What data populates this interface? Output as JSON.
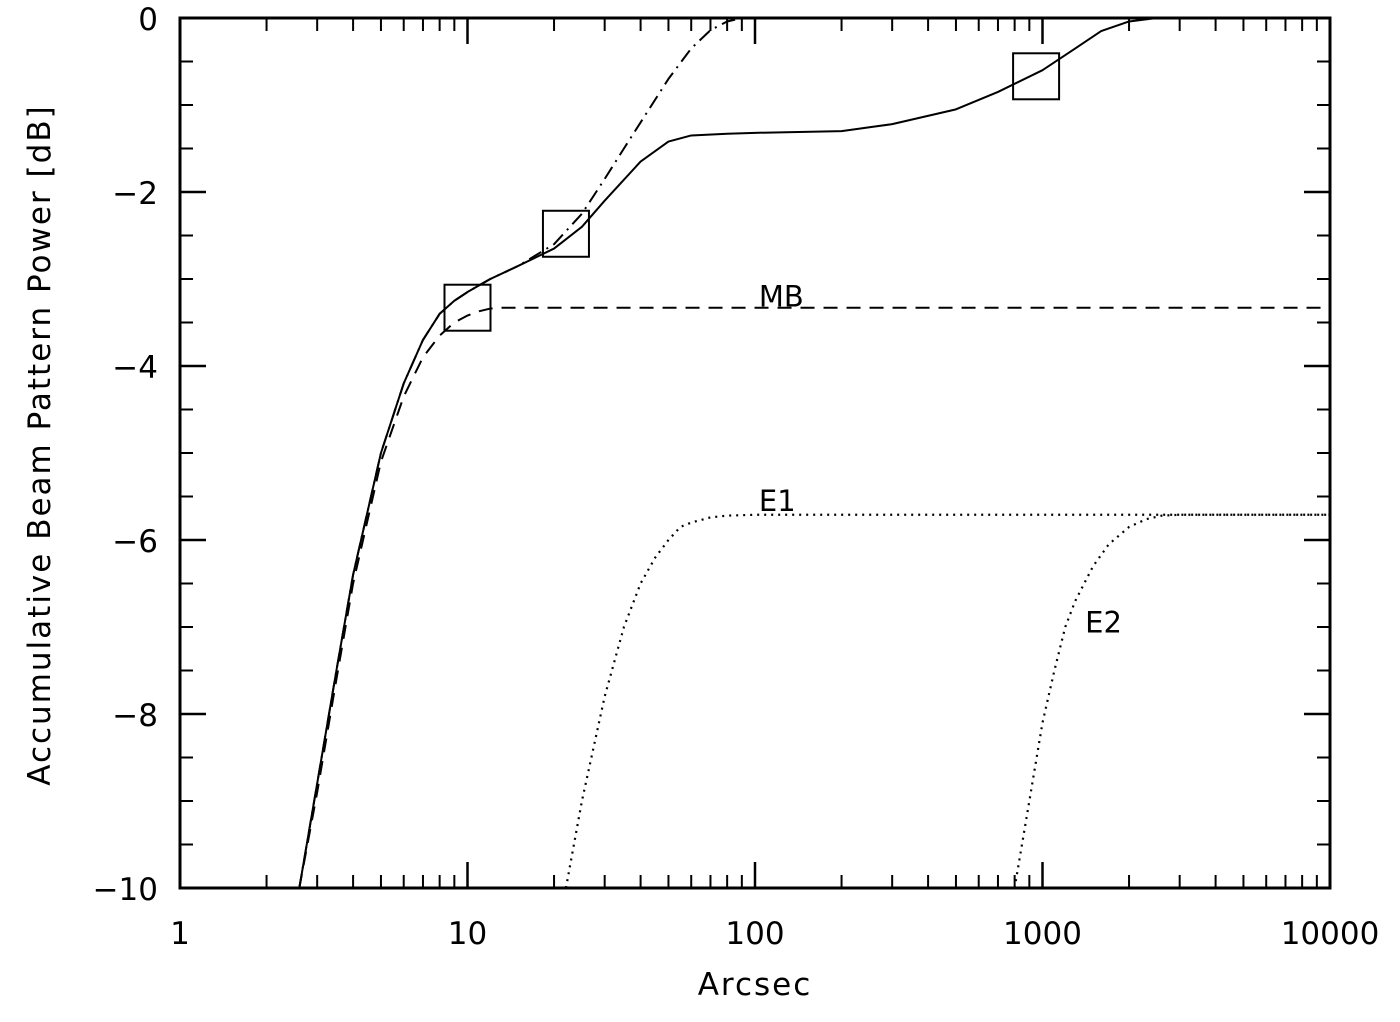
{
  "chart_data": {
    "type": "line",
    "xlabel": "Arcsec",
    "ylabel": "Accumulative Beam Pattern Power [dB]",
    "x_scale": "log",
    "xlim": [
      1,
      10000
    ],
    "ylim": [
      -10,
      0
    ],
    "x_ticks": [
      1,
      10,
      100,
      1000,
      10000
    ],
    "x_tick_labels": [
      "1",
      "10",
      "100",
      "1000",
      "10000"
    ],
    "y_ticks": [
      0,
      -2,
      -4,
      -6,
      -8,
      -10
    ],
    "y_tick_labels": [
      "0",
      "−2",
      "−4",
      "−6",
      "−8",
      "−10"
    ],
    "grid": false,
    "series": [
      {
        "style": "solid",
        "x": [
          2.6,
          3,
          3.5,
          4,
          5,
          6,
          7,
          8,
          9,
          10,
          12,
          15,
          20,
          25,
          30,
          40,
          50,
          60,
          80,
          100,
          200,
          300,
          500,
          700,
          1000,
          1300,
          1600,
          2000,
          2500,
          3000,
          5000,
          10000
        ],
        "y": [
          -10,
          -8.8,
          -7.5,
          -6.4,
          -5.0,
          -4.2,
          -3.7,
          -3.4,
          -3.25,
          -3.15,
          -3.0,
          -2.85,
          -2.65,
          -2.4,
          -2.1,
          -1.65,
          -1.42,
          -1.35,
          -1.33,
          -1.32,
          -1.3,
          -1.22,
          -1.05,
          -0.85,
          -0.6,
          -0.35,
          -0.15,
          -0.04,
          0,
          0,
          0,
          0
        ]
      },
      {
        "style": "dashdot",
        "x": [
          2.6,
          3,
          3.5,
          4,
          5,
          6,
          7,
          8,
          9,
          10,
          12,
          15,
          20,
          25,
          30,
          35,
          40,
          50,
          60,
          70,
          80,
          90
        ],
        "y": [
          -10,
          -8.8,
          -7.5,
          -6.4,
          -5.0,
          -4.2,
          -3.7,
          -3.4,
          -3.25,
          -3.15,
          -3.0,
          -2.85,
          -2.6,
          -2.25,
          -1.85,
          -1.5,
          -1.2,
          -0.7,
          -0.35,
          -0.14,
          -0.04,
          0
        ]
      },
      {
        "name": "MB",
        "style": "dashed",
        "x": [
          2.6,
          3,
          3.5,
          4,
          5,
          6,
          7,
          8,
          9,
          10,
          11,
          12,
          13,
          20,
          100,
          1000,
          10000
        ],
        "y": [
          -10,
          -8.9,
          -7.6,
          -6.5,
          -5.1,
          -4.35,
          -3.9,
          -3.65,
          -3.5,
          -3.42,
          -3.37,
          -3.34,
          -3.33,
          -3.33,
          -3.33,
          -3.33,
          -3.33
        ]
      },
      {
        "name": "E1",
        "style": "dotted",
        "x": [
          22,
          25,
          30,
          35,
          40,
          45,
          50,
          55,
          60,
          70,
          80,
          100,
          1000,
          10000
        ],
        "y": [
          -10,
          -9.0,
          -7.8,
          -7.0,
          -6.5,
          -6.2,
          -6.0,
          -5.85,
          -5.8,
          -5.74,
          -5.72,
          -5.71,
          -5.71,
          -5.71
        ]
      },
      {
        "name": "E2",
        "style": "dotted",
        "x": [
          800,
          900,
          1000,
          1100,
          1200,
          1300,
          1500,
          1700,
          2000,
          2300,
          2600,
          3000,
          10000
        ],
        "y": [
          -10,
          -9.0,
          -8.1,
          -7.5,
          -7.0,
          -6.7,
          -6.3,
          -6.05,
          -5.85,
          -5.76,
          -5.72,
          -5.71,
          -5.71
        ]
      }
    ],
    "annotations": [
      {
        "text": "MB",
        "x": 110,
        "y": -3.2
      },
      {
        "text": "E1",
        "x": 110,
        "y": -5.55
      },
      {
        "text": "E2",
        "x": 1500,
        "y": -6.95
      }
    ],
    "markers": [
      {
        "shape": "square",
        "x": 10,
        "y": -3.33
      },
      {
        "shape": "square",
        "x": 22,
        "y": -2.48
      },
      {
        "shape": "square",
        "x": 950,
        "y": -0.67
      }
    ]
  }
}
